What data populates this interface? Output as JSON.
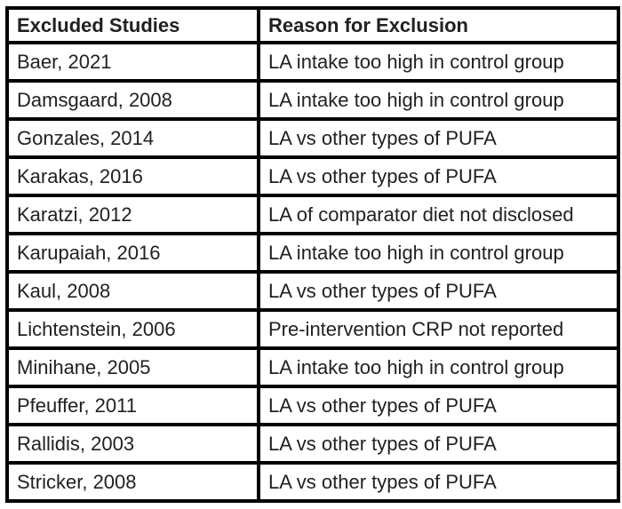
{
  "table": {
    "columns": [
      "Excluded Studies",
      "Reason for Exclusion"
    ],
    "rows": [
      {
        "study": "Baer, 2021",
        "reason": "LA intake too high in control group"
      },
      {
        "study": "Damsgaard, 2008",
        "reason": "LA intake too high in control group"
      },
      {
        "study": "Gonzales, 2014",
        "reason": "LA vs other types of PUFA"
      },
      {
        "study": "Karakas, 2016",
        "reason": "LA vs other types of PUFA"
      },
      {
        "study": "Karatzi, 2012",
        "reason": "LA of comparator diet not disclosed"
      },
      {
        "study": "Karupaiah, 2016",
        "reason": "LA intake too high in control group"
      },
      {
        "study": "Kaul, 2008",
        "reason": "LA vs other types of PUFA"
      },
      {
        "study": "Lichtenstein, 2006",
        "reason": "Pre-intervention CRP not reported"
      },
      {
        "study": "Minihane, 2005",
        "reason": "LA intake too high in control group"
      },
      {
        "study": "Pfeuffer, 2011",
        "reason": "LA vs other types of PUFA"
      },
      {
        "study": "Rallidis, 2003",
        "reason": "LA vs other types of PUFA"
      },
      {
        "study": "Stricker, 2008",
        "reason": "LA vs other types of PUFA"
      }
    ]
  },
  "chart_data": {
    "type": "table",
    "title": "",
    "columns": [
      "Excluded Studies",
      "Reason for Exclusion"
    ],
    "rows": [
      [
        "Baer, 2021",
        "LA intake too high in control group"
      ],
      [
        "Damsgaard, 2008",
        "LA intake too high in control group"
      ],
      [
        "Gonzales, 2014",
        "LA vs other types of PUFA"
      ],
      [
        "Karakas, 2016",
        "LA vs other types of PUFA"
      ],
      [
        "Karatzi, 2012",
        "LA of comparator diet not disclosed"
      ],
      [
        "Karupaiah, 2016",
        "LA intake too high in control group"
      ],
      [
        "Kaul, 2008",
        "LA vs other types of PUFA"
      ],
      [
        "Lichtenstein, 2006",
        "Pre-intervention CRP not reported"
      ],
      [
        "Minihane, 2005",
        "LA intake too high in control group"
      ],
      [
        "Pfeuffer, 2011",
        "LA vs other types of PUFA"
      ],
      [
        "Rallidis, 2003",
        "LA vs other types of PUFA"
      ],
      [
        "Stricker, 2008",
        "LA vs other types of PUFA"
      ]
    ]
  },
  "colors": {
    "border": "#000000",
    "text": "#202124",
    "background": "#ffffff"
  }
}
